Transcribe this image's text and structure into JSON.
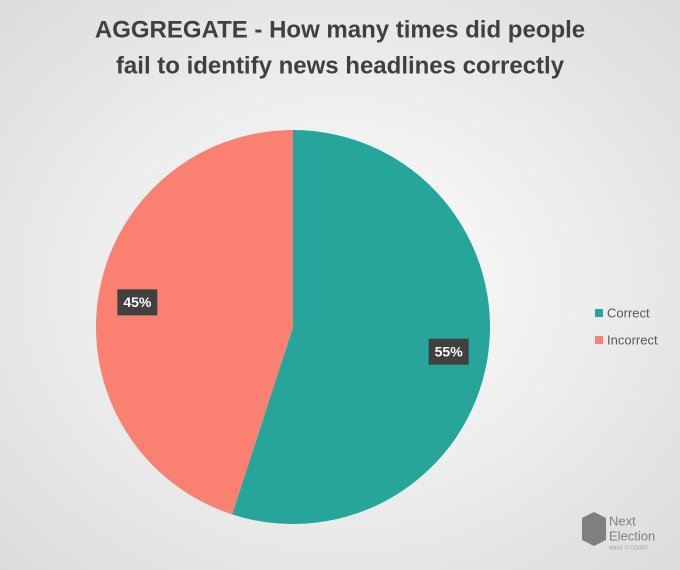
{
  "chart_data": {
    "type": "pie",
    "title": [
      "AGGREGATE - How many times did people",
      "fail to identify news headlines correctly"
    ],
    "categories": [
      "Correct",
      "Incorrect"
    ],
    "values": [
      55,
      45
    ],
    "value_labels": [
      "55%",
      "45%"
    ],
    "colors": [
      "#26a69a",
      "#fa8072"
    ],
    "legend": "right"
  },
  "watermark": {
    "line1": "Next",
    "line2": "Election",
    "tagline": "MAKE IT COUNT"
  }
}
